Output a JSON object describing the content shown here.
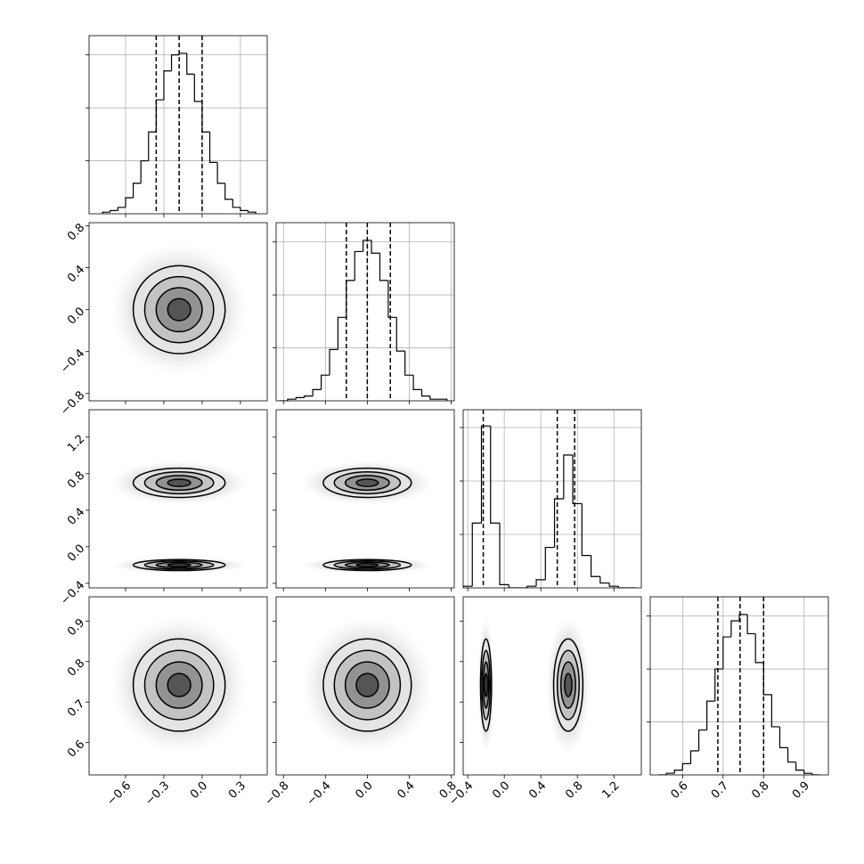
{
  "chart_data": {
    "type": "corner",
    "grid": true,
    "contour_levels": [
      0.5,
      1,
      1.5,
      2
    ],
    "params": [
      {
        "xlim": [
          -0.886,
          0.51
        ],
        "xticks": [
          {
            "value": -0.6,
            "label": "−0.6"
          },
          {
            "value": -0.3,
            "label": "−0.3"
          },
          {
            "value": 0,
            "label": "0.0"
          },
          0.3
        ],
        "bins": [
          -0.78,
          -0.72,
          -0.66,
          -0.6,
          -0.54,
          -0.48,
          -0.42,
          -0.36,
          -0.3,
          -0.24,
          -0.18,
          -0.12,
          -0.06,
          0,
          0.06,
          0.12,
          0.18,
          0.24,
          0.3,
          0.36,
          0.42
        ],
        "counts": [
          1,
          2,
          4,
          10,
          19,
          33,
          51,
          71,
          89,
          99,
          100,
          87,
          70,
          51,
          32,
          19,
          9,
          4,
          2,
          1
        ],
        "ylim": [
          0,
          111
        ],
        "yticks": [
          33,
          66,
          99
        ],
        "quantiles": [
          -0.36,
          -0.18,
          0.0
        ]
      },
      {
        "xlim": [
          -0.87,
          0.83
        ],
        "xticks": [
          {
            "value": -0.8,
            "label": "−0.8"
          },
          {
            "value": -0.4,
            "label": "−0.4"
          },
          {
            "value": 0,
            "label": "0.0"
          },
          0.4,
          0.8
        ],
        "bins": [
          -0.84,
          -0.76,
          -0.68,
          -0.6,
          -0.52,
          -0.44,
          -0.36,
          -0.28,
          -0.2,
          -0.12,
          -0.04,
          0.04,
          0.12,
          0.2,
          0.28,
          0.36,
          0.44,
          0.52,
          0.6,
          0.68,
          0.76
        ],
        "counts": [
          0,
          1,
          2,
          3,
          7,
          16,
          32,
          52,
          75,
          93,
          100,
          92,
          75,
          52,
          31,
          16,
          7,
          3,
          1,
          1
        ],
        "ylim": [
          0,
          111
        ],
        "yticks": [
          33,
          66,
          99
        ],
        "quantiles": [
          -0.2,
          0.0,
          0.22
        ]
      },
      {
        "xlim": [
          -0.45,
          1.5
        ],
        "xticks": [
          {
            "value": -0.4,
            "label": "−0.4"
          },
          {
            "value": 0,
            "label": "0.0"
          },
          0.4,
          0.8,
          1.2
        ],
        "bins": [
          -0.45,
          -0.35,
          -0.25,
          -0.15,
          -0.05,
          0.05,
          0.15,
          0.25,
          0.35,
          0.45,
          0.55,
          0.65,
          0.75,
          0.85,
          0.95,
          1.05,
          1.15,
          1.25,
          1.35,
          1.45
        ],
        "counts": [
          1,
          40,
          100,
          40,
          2,
          0,
          0,
          1,
          5,
          25,
          55,
          82,
          52,
          20,
          7,
          3,
          1,
          0,
          0
        ],
        "ylim": [
          0,
          110
        ],
        "yticks": [
          33,
          66,
          99
        ],
        "quantiles": [
          -0.23,
          0.58,
          0.77
        ]
      },
      {
        "xlim": [
          0.52,
          0.96
        ],
        "xticks": [
          0.6,
          0.7,
          0.8,
          0.9
        ],
        "bins": [
          0.54,
          0.56,
          0.58,
          0.6,
          0.62,
          0.64,
          0.66,
          0.68,
          0.7,
          0.72,
          0.74,
          0.76,
          0.78,
          0.8,
          0.82,
          0.84,
          0.86,
          0.88,
          0.9,
          0.92,
          0.94
        ],
        "counts": [
          0,
          1,
          3,
          7,
          15,
          28,
          46,
          66,
          86,
          96,
          100,
          88,
          70,
          50,
          30,
          17,
          8,
          3,
          1,
          0
        ],
        "ylim": [
          0,
          111
        ],
        "yticks": [
          33,
          66,
          99
        ],
        "quantiles": [
          0.687,
          0.742,
          0.8
        ]
      }
    ],
    "pairs": [
      {
        "x": 0,
        "y": 1,
        "blobs": [
          {
            "cx": -0.18,
            "cy": 0.0,
            "sx": 0.18,
            "sy": 0.21
          }
        ]
      },
      {
        "x": 0,
        "y": 2,
        "blobs": [
          {
            "cx": -0.18,
            "cy": 0.7,
            "sx": 0.18,
            "sy": 0.08
          },
          {
            "cx": -0.18,
            "cy": -0.2,
            "sx": 0.18,
            "sy": 0.03
          }
        ]
      },
      {
        "x": 1,
        "y": 2,
        "blobs": [
          {
            "cx": 0.0,
            "cy": 0.7,
            "sx": 0.21,
            "sy": 0.08
          },
          {
            "cx": 0.0,
            "cy": -0.2,
            "sx": 0.21,
            "sy": 0.03
          }
        ]
      },
      {
        "x": 0,
        "y": 3,
        "blobs": [
          {
            "cx": -0.18,
            "cy": 0.742,
            "sx": 0.18,
            "sy": 0.057
          }
        ]
      },
      {
        "x": 1,
        "y": 3,
        "blobs": [
          {
            "cx": 0.0,
            "cy": 0.742,
            "sx": 0.21,
            "sy": 0.057
          }
        ]
      },
      {
        "x": 2,
        "y": 3,
        "blobs": [
          {
            "cx": -0.2,
            "cy": 0.742,
            "sx": 0.03,
            "sy": 0.057
          },
          {
            "cx": 0.7,
            "cy": 0.742,
            "sx": 0.08,
            "sy": 0.057
          }
        ]
      }
    ]
  }
}
